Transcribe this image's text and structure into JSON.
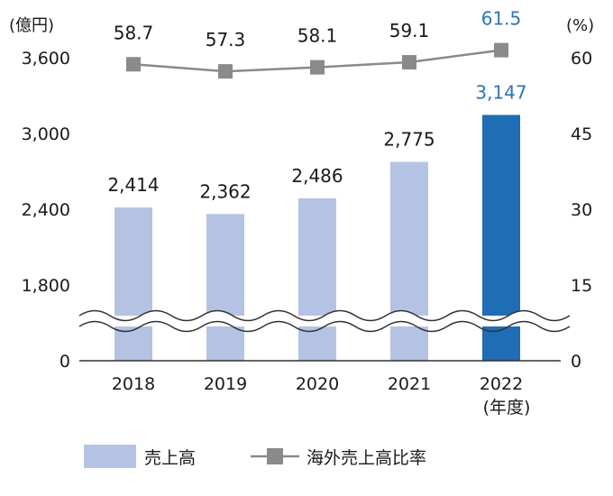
{
  "chart_data": {
    "type": "bar",
    "categories": [
      "2018",
      "2019",
      "2020",
      "2021",
      "2022"
    ],
    "x_unit": "(年度)",
    "series": [
      {
        "name": "売上高",
        "type": "bar",
        "axis": "left",
        "values": [
          2414,
          2362,
          2486,
          2775,
          3147
        ],
        "labels": [
          "2,414",
          "2,362",
          "2,486",
          "2,775",
          "3,147"
        ],
        "color": "#b4c3e3",
        "highlight_color": "#1f6db5"
      },
      {
        "name": "海外売上高比率",
        "type": "line",
        "axis": "right",
        "values": [
          58.7,
          57.3,
          58.1,
          59.1,
          61.5
        ],
        "labels": [
          "58.7",
          "57.3",
          "58.1",
          "59.1",
          "61.5"
        ],
        "color": "#8a8a8a"
      }
    ],
    "highlight_index": 4,
    "highlight_label_color": "#2e75b6",
    "y_left": {
      "unit": "(億円)",
      "ticks": [
        "3,600",
        "3,000",
        "2,400",
        "1,800",
        "0"
      ],
      "tick_values": [
        3600,
        3000,
        2400,
        1800,
        0
      ],
      "range": [
        1800,
        3600
      ],
      "broken": true
    },
    "y_right": {
      "unit": "(%)",
      "ticks": [
        "60",
        "45",
        "30",
        "15",
        "0"
      ],
      "tick_values": [
        60,
        45,
        30,
        15,
        0
      ],
      "range": [
        0,
        60
      ]
    },
    "grid": false,
    "legend_position": "bottom"
  }
}
